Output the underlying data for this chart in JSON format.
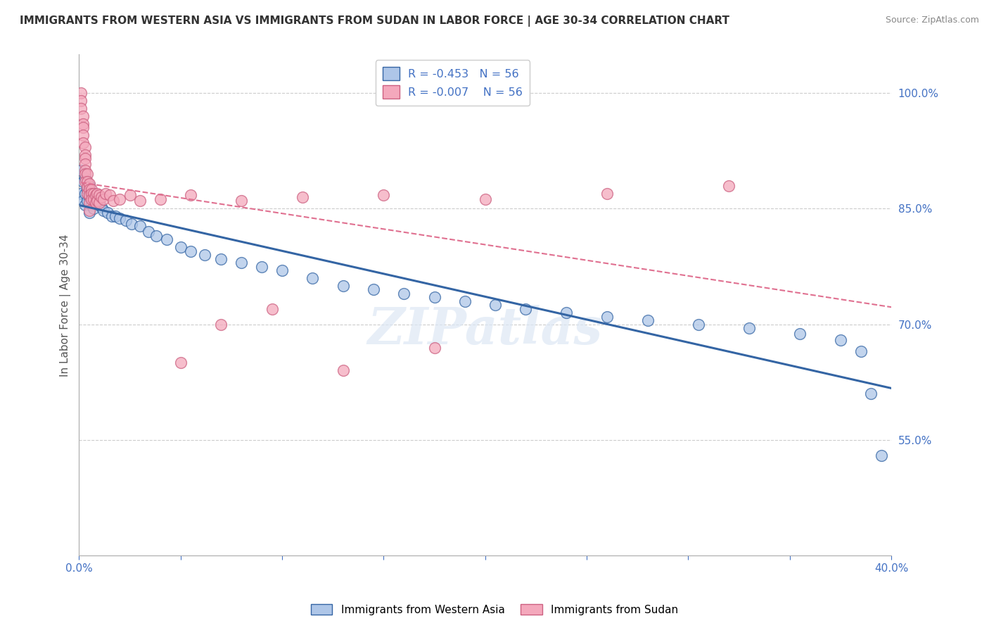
{
  "title": "IMMIGRANTS FROM WESTERN ASIA VS IMMIGRANTS FROM SUDAN IN LABOR FORCE | AGE 30-34 CORRELATION CHART",
  "source": "Source: ZipAtlas.com",
  "ylabel": "In Labor Force | Age 30-34",
  "xlim": [
    0.0,
    0.4
  ],
  "ylim": [
    0.4,
    1.05
  ],
  "xticks": [
    0.0,
    0.05,
    0.1,
    0.15,
    0.2,
    0.25,
    0.3,
    0.35,
    0.4
  ],
  "ytick_labels": [
    "100.0%",
    "85.0%",
    "70.0%",
    "55.0%"
  ],
  "ytick_positions": [
    1.0,
    0.85,
    0.7,
    0.55
  ],
  "legend_r_western": "-0.453",
  "legend_r_sudan": "-0.007",
  "legend_n": "56",
  "legend_label_western": "Immigrants from Western Asia",
  "legend_label_sudan": "Immigrants from Sudan",
  "color_western": "#aec6e8",
  "color_sudan": "#f4a8bc",
  "line_color_western": "#3465a4",
  "line_color_sudan": "#e07090",
  "watermark": "ZIPatlas",
  "western_x": [
    0.001,
    0.001,
    0.002,
    0.002,
    0.003,
    0.003,
    0.003,
    0.004,
    0.004,
    0.005,
    0.005,
    0.005,
    0.006,
    0.006,
    0.007,
    0.007,
    0.008,
    0.009,
    0.01,
    0.011,
    0.012,
    0.014,
    0.016,
    0.018,
    0.02,
    0.023,
    0.026,
    0.03,
    0.034,
    0.038,
    0.043,
    0.05,
    0.055,
    0.062,
    0.07,
    0.08,
    0.09,
    0.1,
    0.115,
    0.13,
    0.145,
    0.16,
    0.175,
    0.19,
    0.205,
    0.22,
    0.24,
    0.26,
    0.28,
    0.305,
    0.33,
    0.355,
    0.375,
    0.385,
    0.39,
    0.395
  ],
  "western_y": [
    0.9,
    0.87,
    0.885,
    0.86,
    0.89,
    0.87,
    0.855,
    0.875,
    0.86,
    0.88,
    0.865,
    0.845,
    0.87,
    0.855,
    0.87,
    0.85,
    0.86,
    0.858,
    0.855,
    0.852,
    0.848,
    0.845,
    0.84,
    0.84,
    0.838,
    0.835,
    0.83,
    0.828,
    0.82,
    0.815,
    0.81,
    0.8,
    0.795,
    0.79,
    0.785,
    0.78,
    0.775,
    0.77,
    0.76,
    0.75,
    0.745,
    0.74,
    0.735,
    0.73,
    0.725,
    0.72,
    0.715,
    0.71,
    0.705,
    0.7,
    0.695,
    0.688,
    0.68,
    0.665,
    0.61,
    0.53
  ],
  "sudan_x": [
    0.001,
    0.001,
    0.001,
    0.002,
    0.002,
    0.002,
    0.002,
    0.002,
    0.003,
    0.003,
    0.003,
    0.003,
    0.003,
    0.003,
    0.003,
    0.004,
    0.004,
    0.004,
    0.004,
    0.005,
    0.005,
    0.005,
    0.005,
    0.005,
    0.006,
    0.006,
    0.006,
    0.007,
    0.007,
    0.008,
    0.008,
    0.009,
    0.009,
    0.01,
    0.01,
    0.011,
    0.012,
    0.013,
    0.015,
    0.017,
    0.02,
    0.025,
    0.03,
    0.04,
    0.055,
    0.08,
    0.11,
    0.15,
    0.2,
    0.26,
    0.05,
    0.07,
    0.095,
    0.13,
    0.175,
    0.32
  ],
  "sudan_y": [
    1.0,
    0.99,
    0.98,
    0.97,
    0.96,
    0.955,
    0.945,
    0.935,
    0.93,
    0.92,
    0.915,
    0.908,
    0.9,
    0.895,
    0.885,
    0.895,
    0.885,
    0.878,
    0.87,
    0.882,
    0.875,
    0.868,
    0.858,
    0.848,
    0.875,
    0.87,
    0.862,
    0.87,
    0.862,
    0.868,
    0.858,
    0.87,
    0.86,
    0.868,
    0.858,
    0.865,
    0.862,
    0.87,
    0.868,
    0.86,
    0.862,
    0.868,
    0.86,
    0.862,
    0.868,
    0.86,
    0.865,
    0.868,
    0.862,
    0.87,
    0.65,
    0.7,
    0.72,
    0.64,
    0.67,
    0.88
  ]
}
